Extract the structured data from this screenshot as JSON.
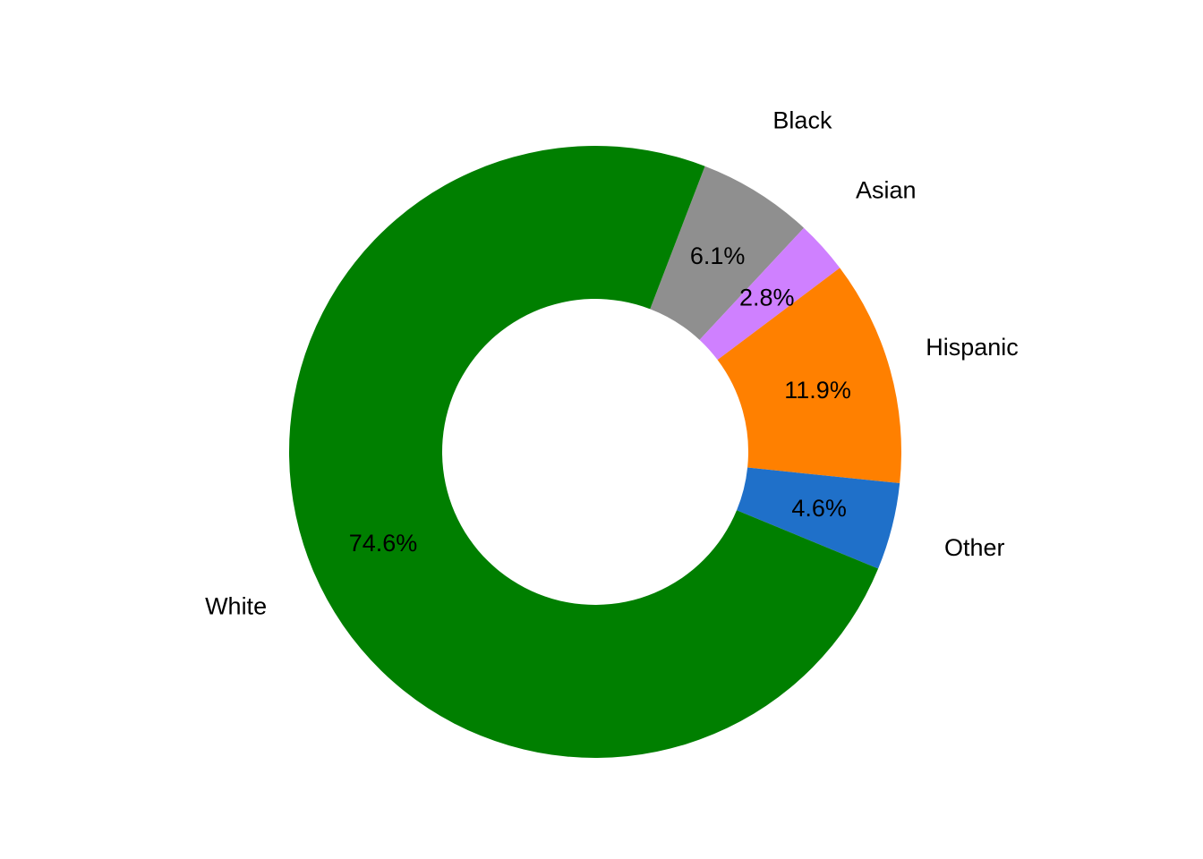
{
  "chart_data": {
    "type": "pie",
    "style": "donut",
    "start_angle_deg": 69,
    "direction": "clockwise",
    "slices": [
      {
        "label": "Black",
        "value": 6.1,
        "value_label": "6.1%",
        "color": "#8f8f8f"
      },
      {
        "label": "Asian",
        "value": 2.8,
        "value_label": "2.8%",
        "color": "#cf80ff"
      },
      {
        "label": "Hispanic",
        "value": 11.9,
        "value_label": "11.9%",
        "color": "#ff8000"
      },
      {
        "label": "Other",
        "value": 4.6,
        "value_label": "4.6%",
        "color": "#1f70c9"
      },
      {
        "label": "White",
        "value": 74.6,
        "value_label": "74.6%",
        "color": "#007f00"
      }
    ],
    "legend": "none"
  }
}
